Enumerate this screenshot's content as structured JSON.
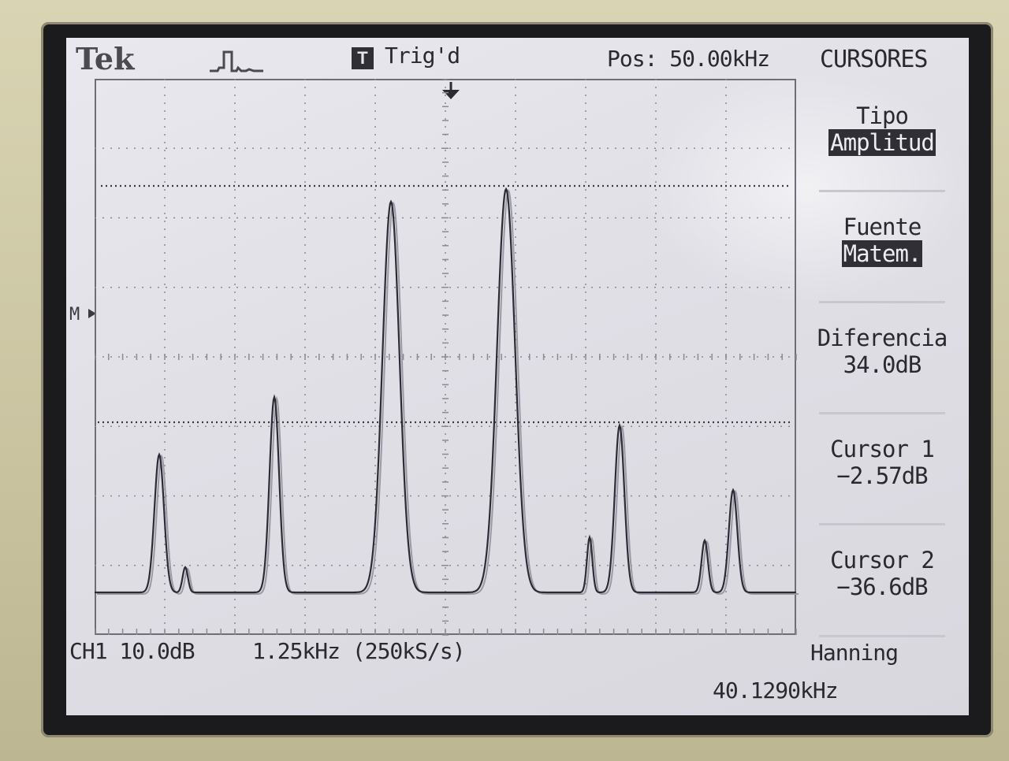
{
  "header": {
    "brand": "Tek",
    "trigger_icon": "T",
    "trigger_status": "Trig'd",
    "position": "Pos: 50.00kHz",
    "menu_title": "CURSORES"
  },
  "menu": [
    {
      "label": "Tipo",
      "value": "Amplitud",
      "inverted": true
    },
    {
      "label": "Fuente",
      "value": "Matem.",
      "inverted": true
    },
    {
      "label": "Diferencia",
      "value": "34.0dB",
      "inverted": false
    },
    {
      "label": "Cursor 1",
      "value": "−2.57dB",
      "inverted": false
    },
    {
      "label": "Cursor 2",
      "value": "−36.6dB",
      "inverted": false
    }
  ],
  "footer": {
    "channel": "CH1 10.0dB",
    "timebase": "1.25kHz (250kS/s)",
    "window": "Hanning",
    "frequency": "40.1290kHz"
  },
  "marker": "M",
  "icons": {
    "pulse": "pulse-waveform-icon",
    "trigger_arrow": "trigger-position-arrow-icon",
    "math_marker": "math-reference-marker-icon"
  },
  "colors": {
    "screen": "#e2e1e8",
    "trace": "#2b2b33",
    "grid": "#8a8a94",
    "inverted_bg": "#2f2f35"
  }
}
